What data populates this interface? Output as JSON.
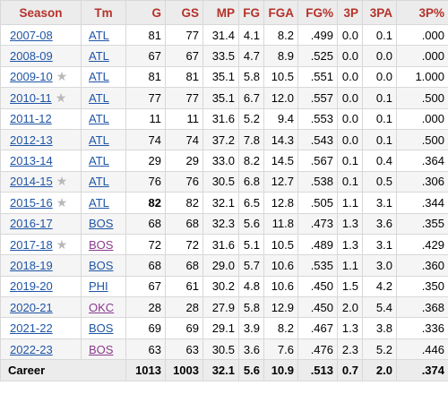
{
  "headers": [
    "Season",
    "Tm",
    "G",
    "GS",
    "MP",
    "FG",
    "FGA",
    "FG%",
    "3P",
    "3PA",
    "3P%"
  ],
  "rows": [
    {
      "season": "2007-08",
      "star": false,
      "tm": "ATL",
      "tm_visited": false,
      "g": "81",
      "g_bold": false,
      "gs": "77",
      "mp": "31.4",
      "fg": "4.1",
      "fga": "8.2",
      "fgp": ".499",
      "tp": "0.0",
      "tpa": "0.1",
      "tpp": ".000"
    },
    {
      "season": "2008-09",
      "star": false,
      "tm": "ATL",
      "tm_visited": false,
      "g": "67",
      "g_bold": false,
      "gs": "67",
      "mp": "33.5",
      "fg": "4.7",
      "fga": "8.9",
      "fgp": ".525",
      "tp": "0.0",
      "tpa": "0.0",
      "tpp": ".000"
    },
    {
      "season": "2009-10",
      "star": true,
      "tm": "ATL",
      "tm_visited": false,
      "g": "81",
      "g_bold": false,
      "gs": "81",
      "mp": "35.1",
      "fg": "5.8",
      "fga": "10.5",
      "fgp": ".551",
      "tp": "0.0",
      "tpa": "0.0",
      "tpp": "1.000"
    },
    {
      "season": "2010-11",
      "star": true,
      "tm": "ATL",
      "tm_visited": false,
      "g": "77",
      "g_bold": false,
      "gs": "77",
      "mp": "35.1",
      "fg": "6.7",
      "fga": "12.0",
      "fgp": ".557",
      "tp": "0.0",
      "tpa": "0.1",
      "tpp": ".500"
    },
    {
      "season": "2011-12",
      "star": false,
      "tm": "ATL",
      "tm_visited": false,
      "g": "11",
      "g_bold": false,
      "gs": "11",
      "mp": "31.6",
      "fg": "5.2",
      "fga": "9.4",
      "fgp": ".553",
      "tp": "0.0",
      "tpa": "0.1",
      "tpp": ".000"
    },
    {
      "season": "2012-13",
      "star": false,
      "tm": "ATL",
      "tm_visited": false,
      "g": "74",
      "g_bold": false,
      "gs": "74",
      "mp": "37.2",
      "fg": "7.8",
      "fga": "14.3",
      "fgp": ".543",
      "tp": "0.0",
      "tpa": "0.1",
      "tpp": ".500"
    },
    {
      "season": "2013-14",
      "star": false,
      "tm": "ATL",
      "tm_visited": false,
      "g": "29",
      "g_bold": false,
      "gs": "29",
      "mp": "33.0",
      "fg": "8.2",
      "fga": "14.5",
      "fgp": ".567",
      "tp": "0.1",
      "tpa": "0.4",
      "tpp": ".364"
    },
    {
      "season": "2014-15",
      "star": true,
      "tm": "ATL",
      "tm_visited": false,
      "g": "76",
      "g_bold": false,
      "gs": "76",
      "mp": "30.5",
      "fg": "6.8",
      "fga": "12.7",
      "fgp": ".538",
      "tp": "0.1",
      "tpa": "0.5",
      "tpp": ".306"
    },
    {
      "season": "2015-16",
      "star": true,
      "tm": "ATL",
      "tm_visited": false,
      "g": "82",
      "g_bold": true,
      "gs": "82",
      "mp": "32.1",
      "fg": "6.5",
      "fga": "12.8",
      "fgp": ".505",
      "tp": "1.1",
      "tpa": "3.1",
      "tpp": ".344"
    },
    {
      "season": "2016-17",
      "star": false,
      "tm": "BOS",
      "tm_visited": false,
      "g": "68",
      "g_bold": false,
      "gs": "68",
      "mp": "32.3",
      "fg": "5.6",
      "fga": "11.8",
      "fgp": ".473",
      "tp": "1.3",
      "tpa": "3.6",
      "tpp": ".355"
    },
    {
      "season": "2017-18",
      "star": true,
      "tm": "BOS",
      "tm_visited": true,
      "g": "72",
      "g_bold": false,
      "gs": "72",
      "mp": "31.6",
      "fg": "5.1",
      "fga": "10.5",
      "fgp": ".489",
      "tp": "1.3",
      "tpa": "3.1",
      "tpp": ".429"
    },
    {
      "season": "2018-19",
      "star": false,
      "tm": "BOS",
      "tm_visited": false,
      "g": "68",
      "g_bold": false,
      "gs": "68",
      "mp": "29.0",
      "fg": "5.7",
      "fga": "10.6",
      "fgp": ".535",
      "tp": "1.1",
      "tpa": "3.0",
      "tpp": ".360"
    },
    {
      "season": "2019-20",
      "star": false,
      "tm": "PHI",
      "tm_visited": false,
      "g": "67",
      "g_bold": false,
      "gs": "61",
      "mp": "30.2",
      "fg": "4.8",
      "fga": "10.6",
      "fgp": ".450",
      "tp": "1.5",
      "tpa": "4.2",
      "tpp": ".350"
    },
    {
      "season": "2020-21",
      "star": false,
      "tm": "OKC",
      "tm_visited": true,
      "g": "28",
      "g_bold": false,
      "gs": "28",
      "mp": "27.9",
      "fg": "5.8",
      "fga": "12.9",
      "fgp": ".450",
      "tp": "2.0",
      "tpa": "5.4",
      "tpp": ".368"
    },
    {
      "season": "2021-22",
      "star": false,
      "tm": "BOS",
      "tm_visited": false,
      "g": "69",
      "g_bold": false,
      "gs": "69",
      "mp": "29.1",
      "fg": "3.9",
      "fga": "8.2",
      "fgp": ".467",
      "tp": "1.3",
      "tpa": "3.8",
      "tpp": ".336"
    },
    {
      "season": "2022-23",
      "star": false,
      "tm": "BOS",
      "tm_visited": true,
      "g": "63",
      "g_bold": false,
      "gs": "63",
      "mp": "30.5",
      "fg": "3.6",
      "fga": "7.6",
      "fgp": ".476",
      "tp": "2.3",
      "tpa": "5.2",
      "tpp": ".446"
    }
  ],
  "career": {
    "label": "Career",
    "g": "1013",
    "gs": "1003",
    "mp": "32.1",
    "fg": "5.6",
    "fga": "10.9",
    "fgp": ".513",
    "tp": "0.7",
    "tpa": "2.0",
    "tpp": ".374"
  },
  "icons": {
    "allstar": "star-icon"
  },
  "colors": {
    "header_text": "#b5322a",
    "link": "#1f55a6",
    "visited_link": "#8a3a8e",
    "star": "#b8b8b8"
  }
}
